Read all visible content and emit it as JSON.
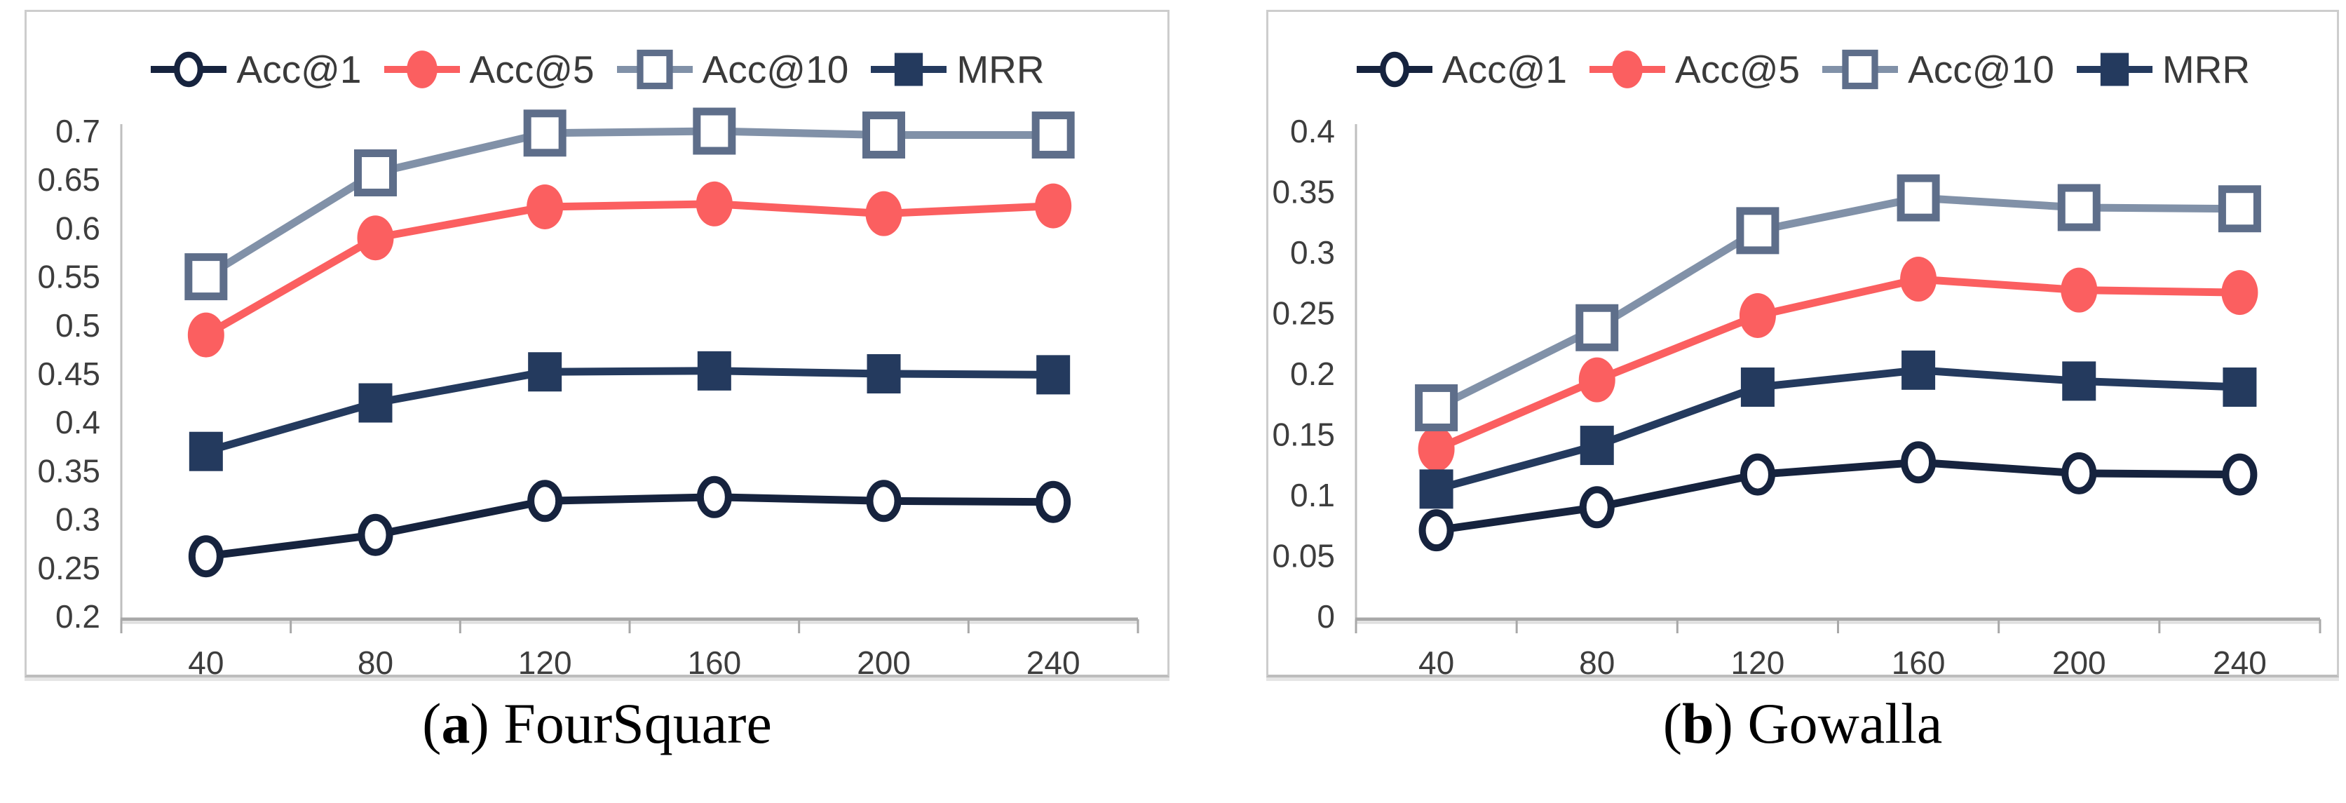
{
  "figure": {
    "background": "#ffffff",
    "panel_border_color": "#cdcdcd",
    "axis_line_color": "#a8a8a8",
    "axis_text_color": "#3d3d3d"
  },
  "chart_data": [
    {
      "type": "line",
      "dataset": "FourSquare",
      "caption": {
        "open": "(",
        "letter": "a",
        "rest": ") FourSquare"
      },
      "x": [
        40,
        80,
        120,
        160,
        200,
        240
      ],
      "xtick_labels": [
        "40",
        "80",
        "120",
        "160",
        "200",
        "240"
      ],
      "xlabel": "",
      "ylabel": "",
      "ylim": [
        0.2,
        0.7
      ],
      "ytick_step": 0.05,
      "ytick_labels": [
        "0.7",
        "0.65",
        "0.6",
        "0.55",
        "0.5",
        "0.45",
        "0.4",
        "0.35",
        "0.3",
        "0.25",
        "0.2"
      ],
      "grid": false,
      "legend": {
        "position": "top-center",
        "entries": [
          "Acc@1",
          "Acc@5",
          "Acc@10",
          "MRR"
        ]
      },
      "series": [
        {
          "name": "Acc@1",
          "marker": "open-circle",
          "color": "#16233e",
          "line_color": "#16233e",
          "values": [
            0.262,
            0.284,
            0.319,
            0.323,
            0.319,
            0.318
          ]
        },
        {
          "name": "Acc@5",
          "marker": "filled-circle",
          "color": "#fb5f60",
          "line_color": "#fb5f60",
          "values": [
            0.49,
            0.59,
            0.622,
            0.625,
            0.615,
            0.623
          ]
        },
        {
          "name": "Acc@10",
          "marker": "open-square",
          "color": "#5e6e8a",
          "line_color": "#8191a8",
          "values": [
            0.55,
            0.657,
            0.698,
            0.7,
            0.696,
            0.696
          ]
        },
        {
          "name": "MRR",
          "marker": "filled-square",
          "color": "#243a5e",
          "line_color": "#243a5e",
          "values": [
            0.37,
            0.42,
            0.452,
            0.453,
            0.45,
            0.449
          ]
        }
      ]
    },
    {
      "type": "line",
      "dataset": "Gowalla",
      "caption": {
        "open": "(",
        "letter": "b",
        "rest": ") Gowalla"
      },
      "x": [
        40,
        80,
        120,
        160,
        200,
        240
      ],
      "xtick_labels": [
        "40",
        "80",
        "120",
        "160",
        "200",
        "240"
      ],
      "xlabel": "",
      "ylabel": "",
      "ylim": [
        0,
        0.4
      ],
      "ytick_step": 0.05,
      "ytick_labels": [
        "0.4",
        "0.35",
        "0.3",
        "0.25",
        "0.2",
        "0.15",
        "0.1",
        "0.05",
        "0"
      ],
      "grid": false,
      "legend": {
        "position": "top-center",
        "entries": [
          "Acc@1",
          "Acc@5",
          "Acc@10",
          "MRR"
        ]
      },
      "series": [
        {
          "name": "Acc@1",
          "marker": "open-circle",
          "color": "#16233e",
          "line_color": "#16233e",
          "values": [
            0.071,
            0.09,
            0.117,
            0.127,
            0.118,
            0.117
          ]
        },
        {
          "name": "Acc@5",
          "marker": "filled-circle",
          "color": "#fb5f60",
          "line_color": "#fb5f60",
          "values": [
            0.138,
            0.195,
            0.248,
            0.278,
            0.269,
            0.267
          ]
        },
        {
          "name": "Acc@10",
          "marker": "open-square",
          "color": "#5e6e8a",
          "line_color": "#8191a8",
          "values": [
            0.172,
            0.238,
            0.318,
            0.345,
            0.337,
            0.336
          ]
        },
        {
          "name": "MRR",
          "marker": "filled-square",
          "color": "#243a5e",
          "line_color": "#243a5e",
          "values": [
            0.105,
            0.141,
            0.189,
            0.203,
            0.194,
            0.189
          ]
        }
      ]
    }
  ]
}
